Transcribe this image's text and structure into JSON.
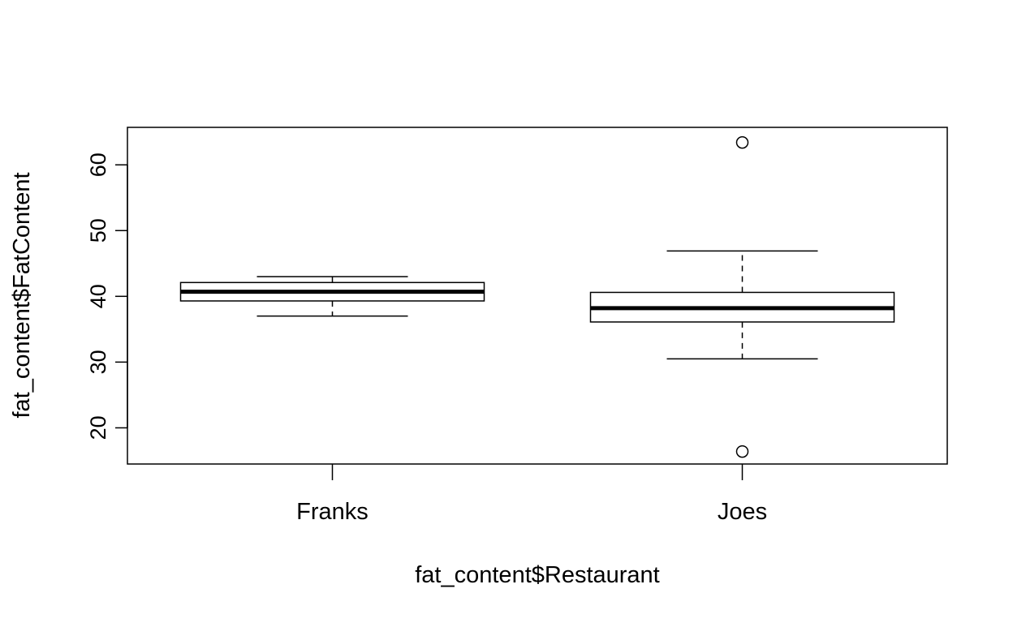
{
  "chart_data": {
    "type": "boxplot",
    "title": "",
    "xlabel": "fat_content$Restaurant",
    "ylabel": "fat_content$FatContent",
    "ylim": [
      14.5,
      65.7
    ],
    "yticks": [
      20,
      30,
      40,
      50,
      60
    ],
    "grid": false,
    "categories": [
      "Franks",
      "Joes"
    ],
    "boxes": [
      {
        "category": "Franks",
        "whisker_low": 37.0,
        "q1": 39.3,
        "median": 40.7,
        "q3": 42.1,
        "whisker_high": 43.0,
        "outliers": []
      },
      {
        "category": "Joes",
        "whisker_low": 30.5,
        "q1": 36.1,
        "median": 38.2,
        "q3": 40.6,
        "whisker_high": 46.9,
        "outliers": [
          63.4,
          16.4
        ]
      }
    ]
  }
}
